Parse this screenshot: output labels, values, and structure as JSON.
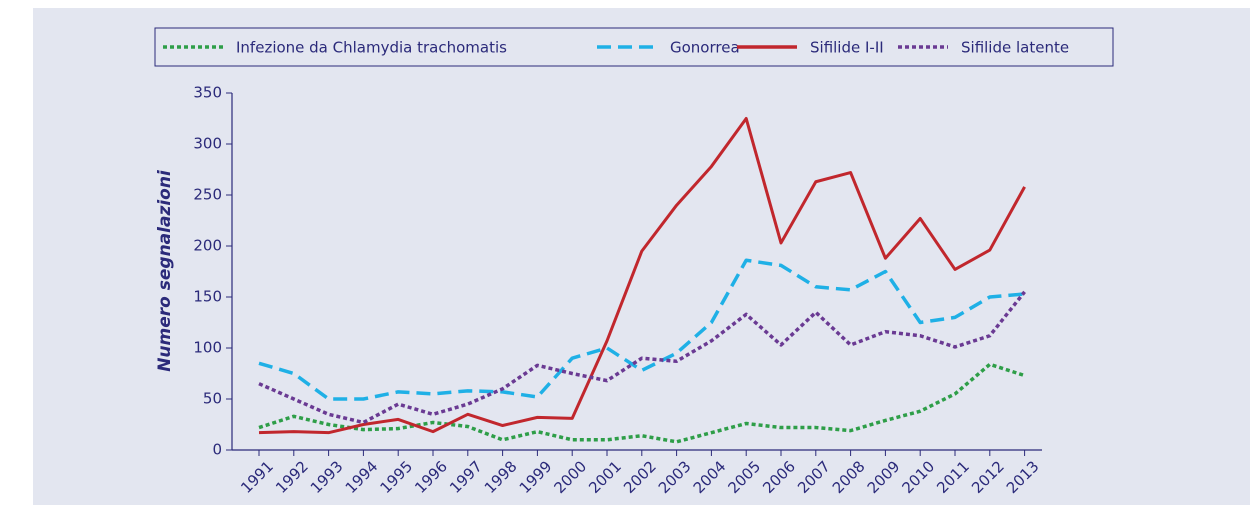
{
  "chart_data": {
    "type": "line",
    "y_label": "Numero segnalazioni",
    "categories": [
      "1991",
      "1992",
      "1993",
      "1994",
      "1995",
      "1996",
      "1997",
      "1998",
      "1999",
      "2000",
      "2001",
      "2002",
      "2003",
      "2004",
      "2005",
      "2006",
      "2007",
      "2008",
      "2009",
      "2010",
      "2011",
      "2012",
      "2013"
    ],
    "series": [
      {
        "name": "Infezione da Chlamydia trachomatis",
        "color": "#2e9e48",
        "style": "dotted",
        "values": [
          22,
          33,
          25,
          20,
          21,
          27,
          23,
          10,
          18,
          10,
          10,
          14,
          8,
          17,
          26,
          22,
          22,
          19,
          29,
          38,
          55,
          84,
          73
        ]
      },
      {
        "name": "Gonorrea",
        "color": "#1fb0e6",
        "style": "dashed",
        "values": [
          85,
          75,
          50,
          50,
          57,
          55,
          58,
          57,
          52,
          90,
          100,
          78,
          95,
          125,
          186,
          181,
          160,
          157,
          175,
          125,
          130,
          150,
          153
        ]
      },
      {
        "name": "Sifilide I-II",
        "color": "#c1272d",
        "style": "solid",
        "values": [
          17,
          18,
          17,
          25,
          30,
          18,
          35,
          24,
          32,
          31,
          107,
          195,
          240,
          278,
          325,
          203,
          263,
          272,
          188,
          227,
          177,
          196,
          258
        ]
      },
      {
        "name": "Sifilide latente",
        "color": "#6a3a93",
        "style": "dotted",
        "values": [
          65,
          50,
          35,
          27,
          45,
          35,
          45,
          60,
          83,
          75,
          68,
          90,
          87,
          107,
          133,
          103,
          135,
          103,
          116,
          112,
          101,
          112,
          155
        ]
      }
    ],
    "ylim": [
      0,
      350
    ],
    "yticks": [
      0,
      50,
      100,
      150,
      200,
      250,
      300,
      350
    ],
    "grid": false
  }
}
